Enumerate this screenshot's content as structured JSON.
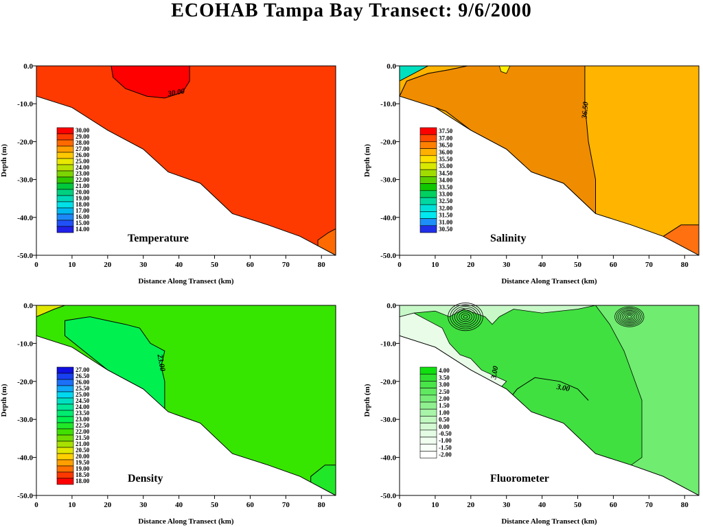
{
  "title": "ECOHAB Tampa Bay Transect: 9/6/2000",
  "chart_data": [
    {
      "type": "heatmap",
      "panel": "temperature",
      "label": "Temperature",
      "xlabel": "Distance Along Transect (km)",
      "ylabel": "Depth (m)",
      "xlim": [
        0,
        84
      ],
      "ylim": [
        -50,
        0
      ],
      "xticks": [
        "0",
        "10",
        "20",
        "30",
        "40",
        "50",
        "60",
        "70",
        "80"
      ],
      "yticks": [
        "0.0",
        "-10.0",
        "-20.0",
        "-30.0",
        "-40.0",
        "-50.0"
      ],
      "colorbar": [
        "30.00",
        "29.00",
        "28.00",
        "27.00",
        "26.00",
        "25.00",
        "24.00",
        "23.00",
        "22.00",
        "21.00",
        "20.00",
        "19.00",
        "18.00",
        "17.00",
        "16.00",
        "15.00",
        "14.00"
      ],
      "colorbar_colors": [
        "#ff0000",
        "#ff3a00",
        "#ff6a00",
        "#ffa000",
        "#ffc800",
        "#e8e800",
        "#b8e000",
        "#7cd400",
        "#30c800",
        "#00c83c",
        "#00d080",
        "#00d8b8",
        "#00e0e8",
        "#00b8f0",
        "#1c88f8",
        "#2050f8",
        "#2020e8"
      ],
      "fills": {
        "base": "#ff3a00",
        "patch": "#ff0000",
        "corner": "#ff6a00"
      },
      "contour_labels": [
        "30.00"
      ]
    },
    {
      "type": "heatmap",
      "panel": "salinity",
      "label": "Salinity",
      "xlabel": "Distance Along Transect (km)",
      "ylabel": "Depth (m)",
      "xlim": [
        0,
        84
      ],
      "ylim": [
        -50,
        0
      ],
      "xticks": [
        "0",
        "10",
        "20",
        "30",
        "40",
        "50",
        "60",
        "70",
        "80"
      ],
      "yticks": [
        "0.0",
        "-10.0",
        "-20.0",
        "-30.0",
        "-40.0",
        "-50.0"
      ],
      "colorbar": [
        "37.50",
        "37.00",
        "36.50",
        "36.00",
        "35.50",
        "35.00",
        "34.50",
        "34.00",
        "33.50",
        "33.00",
        "32.50",
        "32.00",
        "31.50",
        "31.00",
        "30.50"
      ],
      "colorbar_colors": [
        "#ff0000",
        "#ff4800",
        "#ff8000",
        "#ffb000",
        "#ffe000",
        "#d8e800",
        "#a0dc00",
        "#58d000",
        "#10c800",
        "#00d060",
        "#00d8a0",
        "#00e0d8",
        "#00e8f0",
        "#1c90f8",
        "#2030e8"
      ],
      "fills": {
        "base": "#ffb400",
        "orange": "#f08c00",
        "corner": "#ff6a00",
        "cyan": "#00e0c0",
        "yellow": "#ffee00"
      },
      "contour_labels": [
        "36.50"
      ]
    },
    {
      "type": "heatmap",
      "panel": "density",
      "label": "Density",
      "xlabel": "Distance Along Transect (km)",
      "ylabel": "Depth (m)",
      "xlim": [
        0,
        84
      ],
      "ylim": [
        -50,
        0
      ],
      "xticks": [
        "0",
        "10",
        "20",
        "30",
        "40",
        "50",
        "60",
        "70",
        "80"
      ],
      "yticks": [
        "0.0",
        "-10.0",
        "-20.0",
        "-30.0",
        "-40.0",
        "-50.0"
      ],
      "colorbar": [
        "27.00",
        "26.50",
        "26.00",
        "25.50",
        "25.00",
        "24.50",
        "24.00",
        "23.50",
        "23.00",
        "22.50",
        "22.00",
        "21.50",
        "21.00",
        "20.50",
        "20.00",
        "19.50",
        "19.00",
        "18.50",
        "18.00"
      ],
      "colorbar_colors": [
        "#1010e0",
        "#1840f0",
        "#1c70f8",
        "#10a8f8",
        "#00d8f0",
        "#00e0c0",
        "#00e898",
        "#00ec70",
        "#00f050",
        "#20e828",
        "#40e000",
        "#70dc00",
        "#a8e000",
        "#e0e800",
        "#ffd000",
        "#ffa000",
        "#ff7000",
        "#ff3800",
        "#ff0000"
      ],
      "fills": {
        "base": "#36e600",
        "patch": "#00f050",
        "corner": "#20e828",
        "yellow": "#e0e800"
      },
      "contour_labels": [
        "23.00"
      ]
    },
    {
      "type": "heatmap",
      "panel": "fluorometer",
      "label": "Fluorometer",
      "xlabel": "Distance Along Transect (km)",
      "ylabel": "Depth (m)",
      "xlim": [
        0,
        84
      ],
      "ylim": [
        -50,
        0
      ],
      "xticks": [
        "0",
        "10",
        "20",
        "30",
        "40",
        "50",
        "60",
        "70",
        "80"
      ],
      "yticks": [
        "0.0",
        "-10.0",
        "-20.0",
        "-30.0",
        "-40.0",
        "-50.0"
      ],
      "colorbar": [
        "4.00",
        "3.50",
        "3.00",
        "2.50",
        "2.00",
        "1.50",
        "1.00",
        "0.50",
        "0.00",
        "-0.50",
        "-1.00",
        "-1.50",
        "-2.00"
      ],
      "colorbar_colors": [
        "#10e010",
        "#30e030",
        "#48e448",
        "#60e860",
        "#78ec78",
        "#90f090",
        "#a8f4a8",
        "#c0f8c0",
        "#d4fad4",
        "#e4fce4",
        "#f0fef0",
        "#f8fff8",
        "#ffffff"
      ],
      "fills": {
        "base": "#40e040",
        "light": "#70ec70",
        "pale": "#e8fce8",
        "mid": "#58e458"
      },
      "contour_labels": [
        "3.00",
        "3.00"
      ]
    }
  ]
}
